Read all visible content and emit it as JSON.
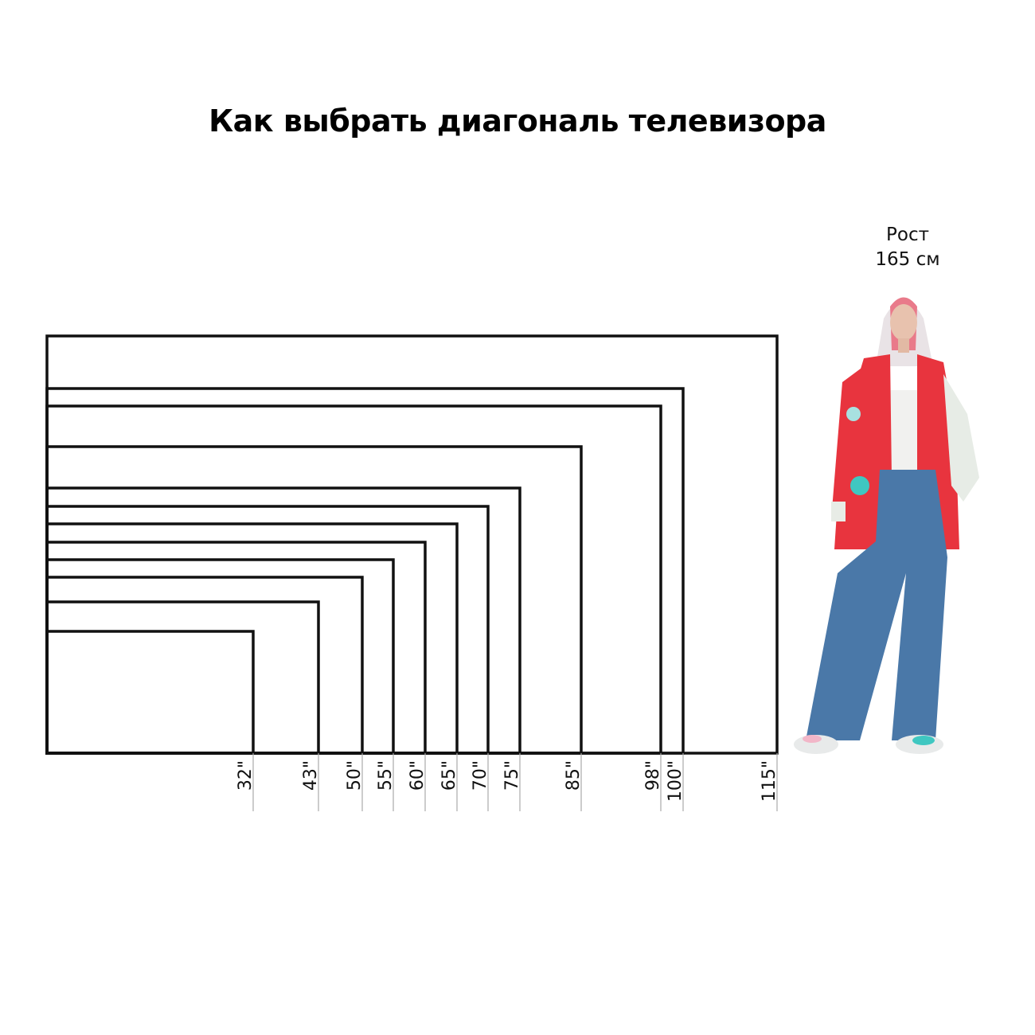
{
  "title": "Как выбрать диагональ телевизора",
  "person": {
    "label_line1": "Рост",
    "label_line2": "165 см"
  },
  "diagonals": [
    "32\"",
    "43\"",
    "50\"",
    "55\"",
    "60\"",
    "65\"",
    "70\"",
    "75\"",
    "85\"",
    "98\"",
    "100\"",
    "115\""
  ],
  "colors": {
    "outline": "#111111",
    "guide": "#aaaaaa",
    "jacket": "#e8343e",
    "jeans": "#4a78a8"
  }
}
